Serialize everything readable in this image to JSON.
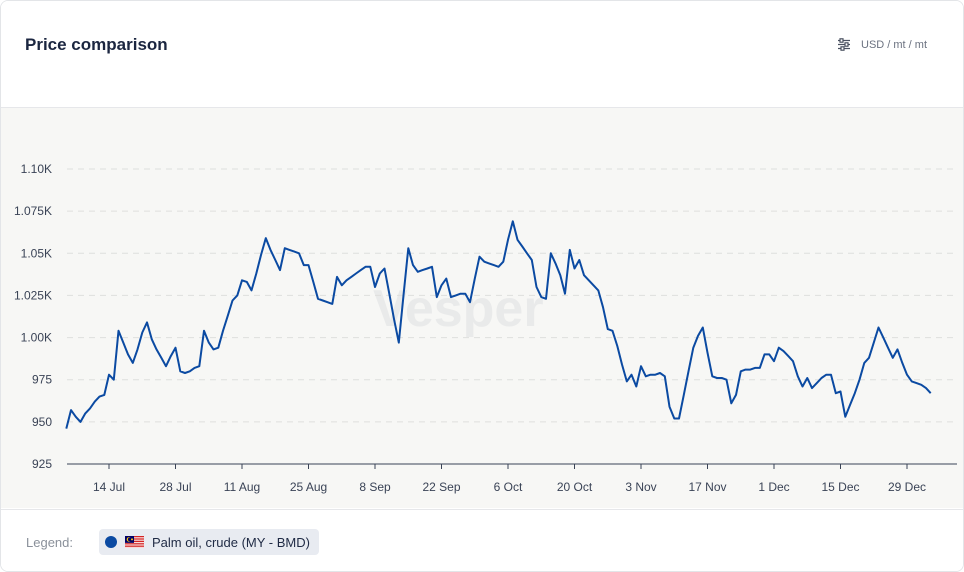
{
  "header": {
    "title": "Price comparison",
    "unit": "USD / mt / mt",
    "unit_icon": "sliders-icon"
  },
  "watermark": {
    "text": "Vesper"
  },
  "legend": {
    "label": "Legend:",
    "items": [
      {
        "name": "Palm oil, crude (MY - BMD)",
        "color": "#0b4aa2",
        "flag": "malaysia-flag-icon"
      }
    ]
  },
  "chart_data": {
    "type": "line",
    "y_ticks": [
      "925",
      "950",
      "975",
      "1.00K",
      "1.025K",
      "1.05K",
      "1.075K",
      "1.10K"
    ],
    "y_tick_values": [
      925,
      950,
      975,
      1000,
      1025,
      1050,
      1075,
      1100
    ],
    "ylim": [
      925,
      1100
    ],
    "x_ticks": [
      "14 Jul",
      "28 Jul",
      "11 Aug",
      "25 Aug",
      "8 Sep",
      "22 Sep",
      "6 Oct",
      "20 Oct",
      "3 Nov",
      "17 Nov",
      "1 Dec",
      "15 Dec",
      "29 Dec"
    ],
    "x_tick_dates": [
      "2023-07-14",
      "2023-07-28",
      "2023-08-11",
      "2023-08-25",
      "2023-09-08",
      "2023-09-22",
      "2023-10-06",
      "2023-10-20",
      "2023-11-03",
      "2023-11-17",
      "2023-12-01",
      "2023-12-15",
      "2023-12-29"
    ],
    "grid": true,
    "series": [
      {
        "name": "Palm oil, crude (MY - BMD)",
        "color": "#0b4aa2",
        "points": [
          [
            "2023-07-05",
            946
          ],
          [
            "2023-07-06",
            957
          ],
          [
            "2023-07-07",
            953
          ],
          [
            "2023-07-08",
            950
          ],
          [
            "2023-07-09",
            955
          ],
          [
            "2023-07-10",
            958
          ],
          [
            "2023-07-11",
            962
          ],
          [
            "2023-07-12",
            965
          ],
          [
            "2023-07-13",
            966
          ],
          [
            "2023-07-14",
            978
          ],
          [
            "2023-07-15",
            975
          ],
          [
            "2023-07-16",
            1004
          ],
          [
            "2023-07-17",
            997
          ],
          [
            "2023-07-18",
            990
          ],
          [
            "2023-07-19",
            985
          ],
          [
            "2023-07-20",
            993
          ],
          [
            "2023-07-21",
            1003
          ],
          [
            "2023-07-22",
            1009
          ],
          [
            "2023-07-23",
            999
          ],
          [
            "2023-07-24",
            993
          ],
          [
            "2023-07-25",
            988
          ],
          [
            "2023-07-26",
            983
          ],
          [
            "2023-07-27",
            989
          ],
          [
            "2023-07-28",
            994
          ],
          [
            "2023-07-29",
            980
          ],
          [
            "2023-07-30",
            979
          ],
          [
            "2023-07-31",
            980
          ],
          [
            "2023-08-01",
            982
          ],
          [
            "2023-08-02",
            983
          ],
          [
            "2023-08-03",
            1004
          ],
          [
            "2023-08-04",
            997
          ],
          [
            "2023-08-05",
            993
          ],
          [
            "2023-08-06",
            994
          ],
          [
            "2023-08-07",
            1004
          ],
          [
            "2023-08-08",
            1013
          ],
          [
            "2023-08-09",
            1022
          ],
          [
            "2023-08-10",
            1025
          ],
          [
            "2023-08-11",
            1034
          ],
          [
            "2023-08-12",
            1033
          ],
          [
            "2023-08-13",
            1028
          ],
          [
            "2023-08-14",
            1038
          ],
          [
            "2023-08-15",
            1049
          ],
          [
            "2023-08-16",
            1059
          ],
          [
            "2023-08-17",
            1052
          ],
          [
            "2023-08-18",
            1046
          ],
          [
            "2023-08-19",
            1040
          ],
          [
            "2023-08-20",
            1053
          ],
          [
            "2023-08-21",
            1052
          ],
          [
            "2023-08-22",
            1051
          ],
          [
            "2023-08-23",
            1050
          ],
          [
            "2023-08-24",
            1043
          ],
          [
            "2023-08-25",
            1043
          ],
          [
            "2023-08-26",
            1033
          ],
          [
            "2023-08-27",
            1023
          ],
          [
            "2023-08-28",
            1022
          ],
          [
            "2023-08-29",
            1021
          ],
          [
            "2023-08-30",
            1020
          ],
          [
            "2023-08-31",
            1036
          ],
          [
            "2023-09-01",
            1031
          ],
          [
            "2023-09-02",
            1034
          ],
          [
            "2023-09-03",
            1036
          ],
          [
            "2023-09-04",
            1038
          ],
          [
            "2023-09-05",
            1040
          ],
          [
            "2023-09-06",
            1042
          ],
          [
            "2023-09-07",
            1042
          ],
          [
            "2023-09-08",
            1030
          ],
          [
            "2023-09-09",
            1038
          ],
          [
            "2023-09-10",
            1041
          ],
          [
            "2023-09-11",
            1026
          ],
          [
            "2023-09-12",
            1011
          ],
          [
            "2023-09-13",
            997
          ],
          [
            "2023-09-14",
            1025
          ],
          [
            "2023-09-15",
            1053
          ],
          [
            "2023-09-16",
            1043
          ],
          [
            "2023-09-17",
            1039
          ],
          [
            "2023-09-18",
            1040
          ],
          [
            "2023-09-19",
            1041
          ],
          [
            "2023-09-20",
            1042
          ],
          [
            "2023-09-21",
            1024
          ],
          [
            "2023-09-22",
            1031
          ],
          [
            "2023-09-23",
            1035
          ],
          [
            "2023-09-24",
            1024
          ],
          [
            "2023-09-25",
            1025
          ],
          [
            "2023-09-26",
            1026
          ],
          [
            "2023-09-27",
            1026
          ],
          [
            "2023-09-28",
            1021
          ],
          [
            "2023-09-29",
            1035
          ],
          [
            "2023-09-30",
            1048
          ],
          [
            "2023-10-01",
            1045
          ],
          [
            "2023-10-02",
            1044
          ],
          [
            "2023-10-03",
            1043
          ],
          [
            "2023-10-04",
            1042
          ],
          [
            "2023-10-05",
            1045
          ],
          [
            "2023-10-06",
            1058
          ],
          [
            "2023-10-07",
            1069
          ],
          [
            "2023-10-08",
            1058
          ],
          [
            "2023-10-09",
            1054
          ],
          [
            "2023-10-10",
            1050
          ],
          [
            "2023-10-11",
            1046
          ],
          [
            "2023-10-12",
            1030
          ],
          [
            "2023-10-13",
            1024
          ],
          [
            "2023-10-14",
            1023
          ],
          [
            "2023-10-15",
            1050
          ],
          [
            "2023-10-16",
            1044
          ],
          [
            "2023-10-17",
            1037
          ],
          [
            "2023-10-18",
            1026
          ],
          [
            "2023-10-19",
            1052
          ],
          [
            "2023-10-20",
            1041
          ],
          [
            "2023-10-21",
            1046
          ],
          [
            "2023-10-22",
            1037
          ],
          [
            "2023-10-23",
            1034
          ],
          [
            "2023-10-24",
            1031
          ],
          [
            "2023-10-25",
            1028
          ],
          [
            "2023-10-26",
            1018
          ],
          [
            "2023-10-27",
            1005
          ],
          [
            "2023-10-28",
            1004
          ],
          [
            "2023-10-29",
            995
          ],
          [
            "2023-10-30",
            984
          ],
          [
            "2023-10-31",
            974
          ],
          [
            "2023-11-01",
            978
          ],
          [
            "2023-11-02",
            971
          ],
          [
            "2023-11-03",
            983
          ],
          [
            "2023-11-04",
            977
          ],
          [
            "2023-11-05",
            978
          ],
          [
            "2023-11-06",
            978
          ],
          [
            "2023-11-07",
            979
          ],
          [
            "2023-11-08",
            977
          ],
          [
            "2023-11-09",
            959
          ],
          [
            "2023-11-10",
            952
          ],
          [
            "2023-11-11",
            952
          ],
          [
            "2023-11-12",
            966
          ],
          [
            "2023-11-13",
            980
          ],
          [
            "2023-11-14",
            994
          ],
          [
            "2023-11-15",
            1001
          ],
          [
            "2023-11-16",
            1006
          ],
          [
            "2023-11-17",
            991
          ],
          [
            "2023-11-18",
            977
          ],
          [
            "2023-11-19",
            976
          ],
          [
            "2023-11-20",
            976
          ],
          [
            "2023-11-21",
            975
          ],
          [
            "2023-11-22",
            961
          ],
          [
            "2023-11-23",
            966
          ],
          [
            "2023-11-24",
            980
          ],
          [
            "2023-11-25",
            981
          ],
          [
            "2023-11-26",
            981
          ],
          [
            "2023-11-27",
            982
          ],
          [
            "2023-11-28",
            982
          ],
          [
            "2023-11-29",
            990
          ],
          [
            "2023-11-30",
            990
          ],
          [
            "2023-12-01",
            986
          ],
          [
            "2023-12-02",
            994
          ],
          [
            "2023-12-03",
            992
          ],
          [
            "2023-12-04",
            989
          ],
          [
            "2023-12-05",
            986
          ],
          [
            "2023-12-06",
            977
          ],
          [
            "2023-12-07",
            971
          ],
          [
            "2023-12-08",
            976
          ],
          [
            "2023-12-09",
            970
          ],
          [
            "2023-12-10",
            973
          ],
          [
            "2023-12-11",
            976
          ],
          [
            "2023-12-12",
            978
          ],
          [
            "2023-12-13",
            978
          ],
          [
            "2023-12-14",
            967
          ],
          [
            "2023-12-15",
            968
          ],
          [
            "2023-12-16",
            953
          ],
          [
            "2023-12-17",
            960
          ],
          [
            "2023-12-18",
            967
          ],
          [
            "2023-12-19",
            975
          ],
          [
            "2023-12-20",
            985
          ],
          [
            "2023-12-21",
            988
          ],
          [
            "2023-12-22",
            997
          ],
          [
            "2023-12-23",
            1006
          ],
          [
            "2023-12-24",
            1000
          ],
          [
            "2023-12-25",
            994
          ],
          [
            "2023-12-26",
            988
          ],
          [
            "2023-12-27",
            993
          ],
          [
            "2023-12-28",
            985
          ],
          [
            "2023-12-29",
            978
          ],
          [
            "2023-12-30",
            974
          ],
          [
            "2023-12-31",
            973
          ],
          [
            "2024-01-01",
            972
          ],
          [
            "2024-01-02",
            970
          ],
          [
            "2024-01-03",
            967
          ]
        ]
      }
    ]
  }
}
